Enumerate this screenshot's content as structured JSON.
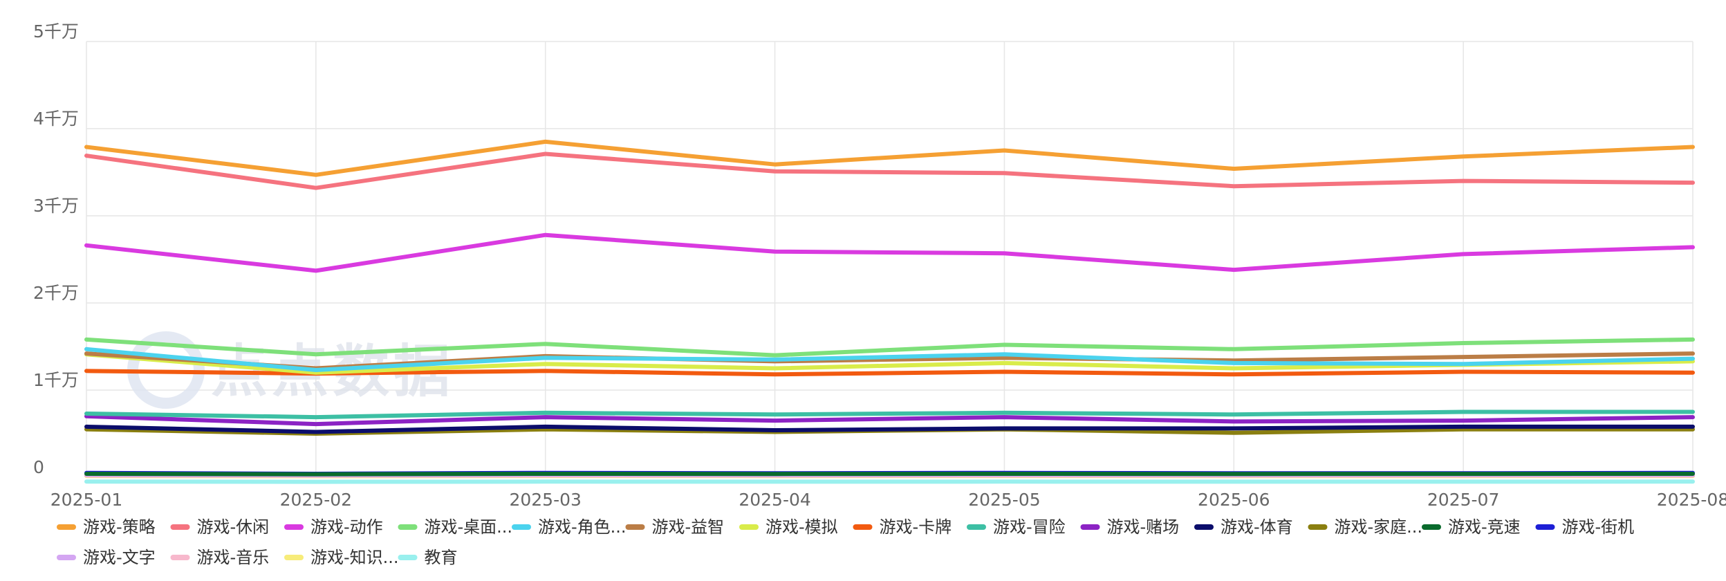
{
  "chart_data": {
    "type": "line",
    "title": "",
    "xlabel": "",
    "ylabel": "",
    "categories": [
      "2025-01",
      "2025-02",
      "2025-03",
      "2025-04",
      "2025-05",
      "2025-06",
      "2025-07",
      "2025-08"
    ],
    "ylim": [
      0,
      50000000
    ],
    "yticks": [
      {
        "value": 0,
        "label": "0"
      },
      {
        "value": 10000000,
        "label": "1千万"
      },
      {
        "value": 20000000,
        "label": "2千万"
      },
      {
        "value": 30000000,
        "label": "3千万"
      },
      {
        "value": 40000000,
        "label": "4千万"
      },
      {
        "value": 50000000,
        "label": "5千万"
      }
    ],
    "grid": true,
    "legend_position": "bottom",
    "series": [
      {
        "name": "游戏-策略",
        "legend_label": "游戏-策略",
        "color": "#f5a033",
        "values": [
          37900000,
          34700000,
          38500000,
          35900000,
          37500000,
          35400000,
          36800000,
          37900000
        ]
      },
      {
        "name": "游戏-休闲",
        "legend_label": "游戏-休闲",
        "color": "#f5737f",
        "values": [
          36900000,
          33200000,
          37100000,
          35100000,
          34900000,
          33400000,
          34000000,
          33800000
        ]
      },
      {
        "name": "游戏-动作",
        "legend_label": "游戏-动作",
        "color": "#d93ae0",
        "values": [
          26600000,
          23700000,
          27800000,
          25900000,
          25700000,
          23800000,
          25600000,
          26400000
        ]
      },
      {
        "name": "游戏-桌面游戏",
        "legend_label": "游戏-桌面...",
        "color": "#7ee07a",
        "values": [
          15800000,
          14100000,
          15300000,
          14000000,
          15200000,
          14700000,
          15400000,
          15800000
        ]
      },
      {
        "name": "游戏-角色扮演",
        "legend_label": "游戏-角色...",
        "color": "#4bd3ee",
        "values": [
          14700000,
          12300000,
          13700000,
          13500000,
          14100000,
          13100000,
          13000000,
          13600000
        ]
      },
      {
        "name": "游戏-益智",
        "legend_label": "游戏-益智",
        "color": "#bb7d46",
        "values": [
          14200000,
          12500000,
          13900000,
          13300000,
          13700000,
          13400000,
          13800000,
          14200000
        ]
      },
      {
        "name": "游戏-模拟",
        "legend_label": "游戏-模拟",
        "color": "#d9ec4a",
        "values": [
          14100000,
          12000000,
          13000000,
          12500000,
          13100000,
          12500000,
          12900000,
          13300000
        ]
      },
      {
        "name": "游戏-卡牌",
        "legend_label": "游戏-卡牌",
        "color": "#f25a10",
        "values": [
          12200000,
          11900000,
          12200000,
          11800000,
          12100000,
          11800000,
          12100000,
          12000000
        ]
      },
      {
        "name": "游戏-冒险",
        "legend_label": "游戏-冒险",
        "color": "#3dbfa4",
        "values": [
          7300000,
          6900000,
          7400000,
          7200000,
          7400000,
          7200000,
          7500000,
          7500000
        ]
      },
      {
        "name": "游戏-赌场",
        "legend_label": "游戏-赌场",
        "color": "#8c23c4",
        "values": [
          7000000,
          6100000,
          6900000,
          6500000,
          6900000,
          6400000,
          6500000,
          6900000
        ]
      },
      {
        "name": "游戏-体育",
        "legend_label": "游戏-体育",
        "color": "#0b0d6b",
        "values": [
          5800000,
          5200000,
          5800000,
          5400000,
          5600000,
          5600000,
          5800000,
          5800000
        ]
      },
      {
        "name": "游戏-家庭游戏",
        "legend_label": "游戏-家庭...",
        "color": "#8a7f10",
        "values": [
          5500000,
          5000000,
          5500000,
          5200000,
          5500000,
          5100000,
          5500000,
          5500000
        ]
      },
      {
        "name": "游戏-竞速",
        "legend_label": "游戏-竞速",
        "color": "#0a6b2d",
        "values": [
          400000,
          350000,
          400000,
          380000,
          400000,
          380000,
          390000,
          400000
        ]
      },
      {
        "name": "游戏-街机",
        "legend_label": "游戏-街机",
        "color": "#1d1fd6",
        "values": [
          500000,
          400000,
          500000,
          450000,
          500000,
          450000,
          450000,
          500000
        ]
      },
      {
        "name": "游戏-文字",
        "legend_label": "游戏-文字",
        "color": "#d4a6f2",
        "values": [
          300000,
          250000,
          300000,
          280000,
          300000,
          280000,
          290000,
          300000
        ]
      },
      {
        "name": "游戏-音乐",
        "legend_label": "游戏-音乐",
        "color": "#f7b8cc",
        "values": [
          200000,
          180000,
          200000,
          190000,
          200000,
          190000,
          195000,
          200000
        ]
      },
      {
        "name": "游戏-知识问答",
        "legend_label": "游戏-知识...",
        "color": "#f7ec7a",
        "values": [
          150000,
          130000,
          150000,
          140000,
          150000,
          140000,
          145000,
          150000
        ]
      },
      {
        "name": "教育",
        "legend_label": "教育",
        "color": "#99f0ee",
        "values": [
          -500000,
          -520000,
          -500000,
          -510000,
          -500000,
          -510000,
          -505000,
          -500000
        ]
      }
    ]
  },
  "watermark": {
    "text": "点点数据"
  }
}
